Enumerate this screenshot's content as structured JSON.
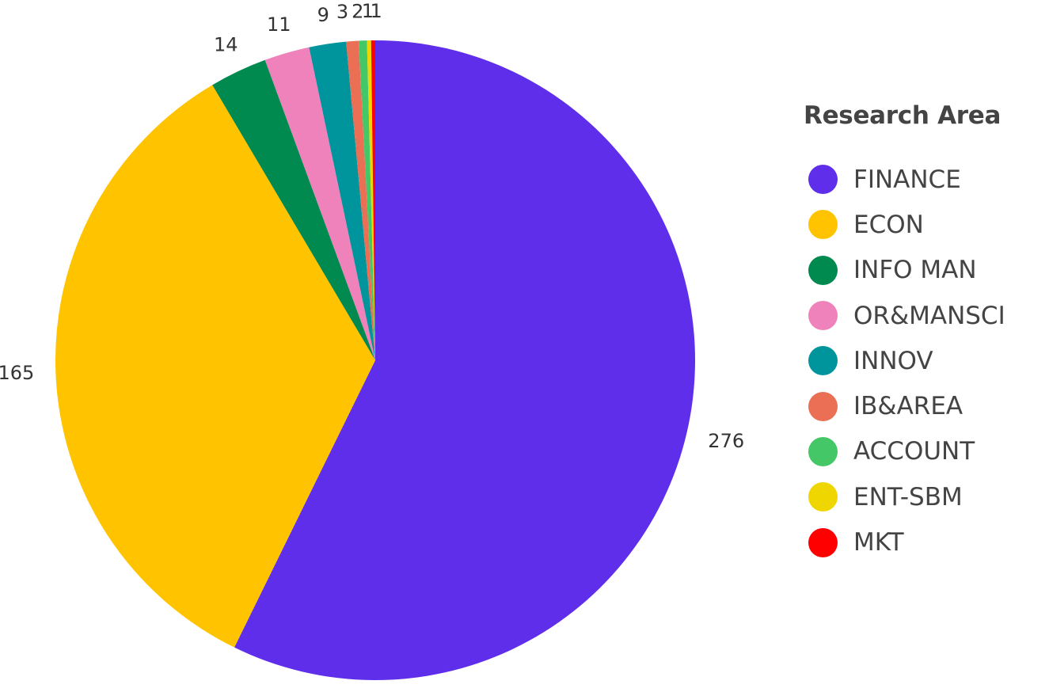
{
  "chart_data": {
    "type": "pie",
    "legend_title": "Research Area",
    "legend_position": "right",
    "slices": [
      {
        "name": "FINANCE",
        "value": 276,
        "color": "#5f2eea",
        "label": "276"
      },
      {
        "name": "ECON",
        "value": 165,
        "color": "#ffc300",
        "label": "165"
      },
      {
        "name": "INFO MAN",
        "value": 14,
        "color": "#008a50",
        "label": "14"
      },
      {
        "name": "OR&MANSCI",
        "value": 11,
        "color": "#ef82ba",
        "label": "11"
      },
      {
        "name": "INNOV",
        "value": 9,
        "color": "#00959c",
        "label": "9"
      },
      {
        "name": "IB&AREA",
        "value": 3,
        "color": "#ea6f55",
        "label": "3"
      },
      {
        "name": "ACCOUNT",
        "value": 2,
        "color": "#44c767",
        "label": "2"
      },
      {
        "name": "ENT-SBM",
        "value": 1,
        "color": "#efd600",
        "label": "1"
      },
      {
        "name": "MKT",
        "value": 1,
        "color": "#ff0000",
        "label": "1"
      }
    ]
  }
}
